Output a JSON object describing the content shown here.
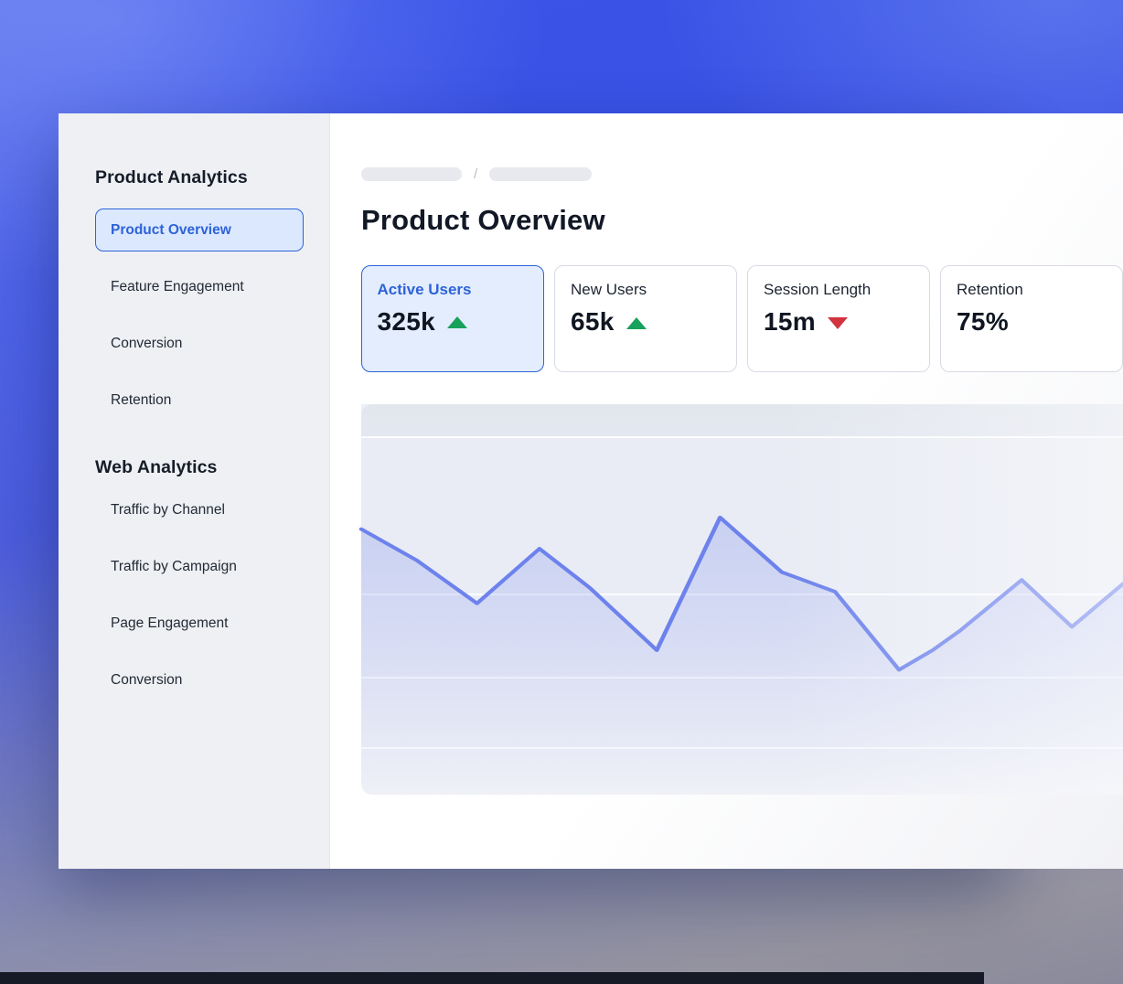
{
  "window": {
    "sidebar": {
      "sections": [
        {
          "title": "Product Analytics",
          "items": [
            {
              "label": "Product Overview",
              "active": true
            },
            {
              "label": "Feature Engagement",
              "active": false
            },
            {
              "label": "Conversion",
              "active": false
            },
            {
              "label": "Retention",
              "active": false
            }
          ]
        },
        {
          "title": "Web Analytics",
          "items": [
            {
              "label": "Traffic by Channel",
              "active": false
            },
            {
              "label": "Traffic by Campaign",
              "active": false
            },
            {
              "label": "Page Engagement",
              "active": false
            },
            {
              "label": "Conversion",
              "active": false
            }
          ]
        }
      ]
    },
    "main": {
      "breadcrumb": {
        "separator": "/"
      },
      "title": "Product Overview",
      "metric_cards": [
        {
          "label": "Active Users",
          "value": "325k",
          "trend": "up",
          "active": true
        },
        {
          "label": "New Users",
          "value": "65k",
          "trend": "up",
          "active": false
        },
        {
          "label": "Session Length",
          "value": "15m",
          "trend": "down",
          "active": false
        },
        {
          "label": "Retention",
          "value": "75%",
          "trend": "none",
          "active": false
        }
      ]
    }
  },
  "colors": {
    "accent_blue": "#2e63d8",
    "active_fill": "#dce8fd",
    "trend_up_green": "#18a15c",
    "trend_down_red": "#d3333f",
    "chart_line": "#6d82ec",
    "chart_fill": "#94a3ee"
  },
  "chart_data": {
    "type": "area",
    "title": "",
    "xlabel": "",
    "ylabel": "",
    "x": [
      0,
      7.3,
      15.2,
      23.4,
      30,
      38.8,
      47.1,
      55.2,
      62.2,
      70.6,
      75,
      78.6,
      86.7,
      93.3,
      100
    ],
    "values": [
      68,
      60,
      49,
      63,
      53,
      37,
      71,
      57,
      52,
      32,
      37,
      42,
      55,
      43,
      54
    ],
    "ylim": [
      0,
      100
    ],
    "grid": "horizontal-bands",
    "legend": "none",
    "tick_labels": "none"
  }
}
